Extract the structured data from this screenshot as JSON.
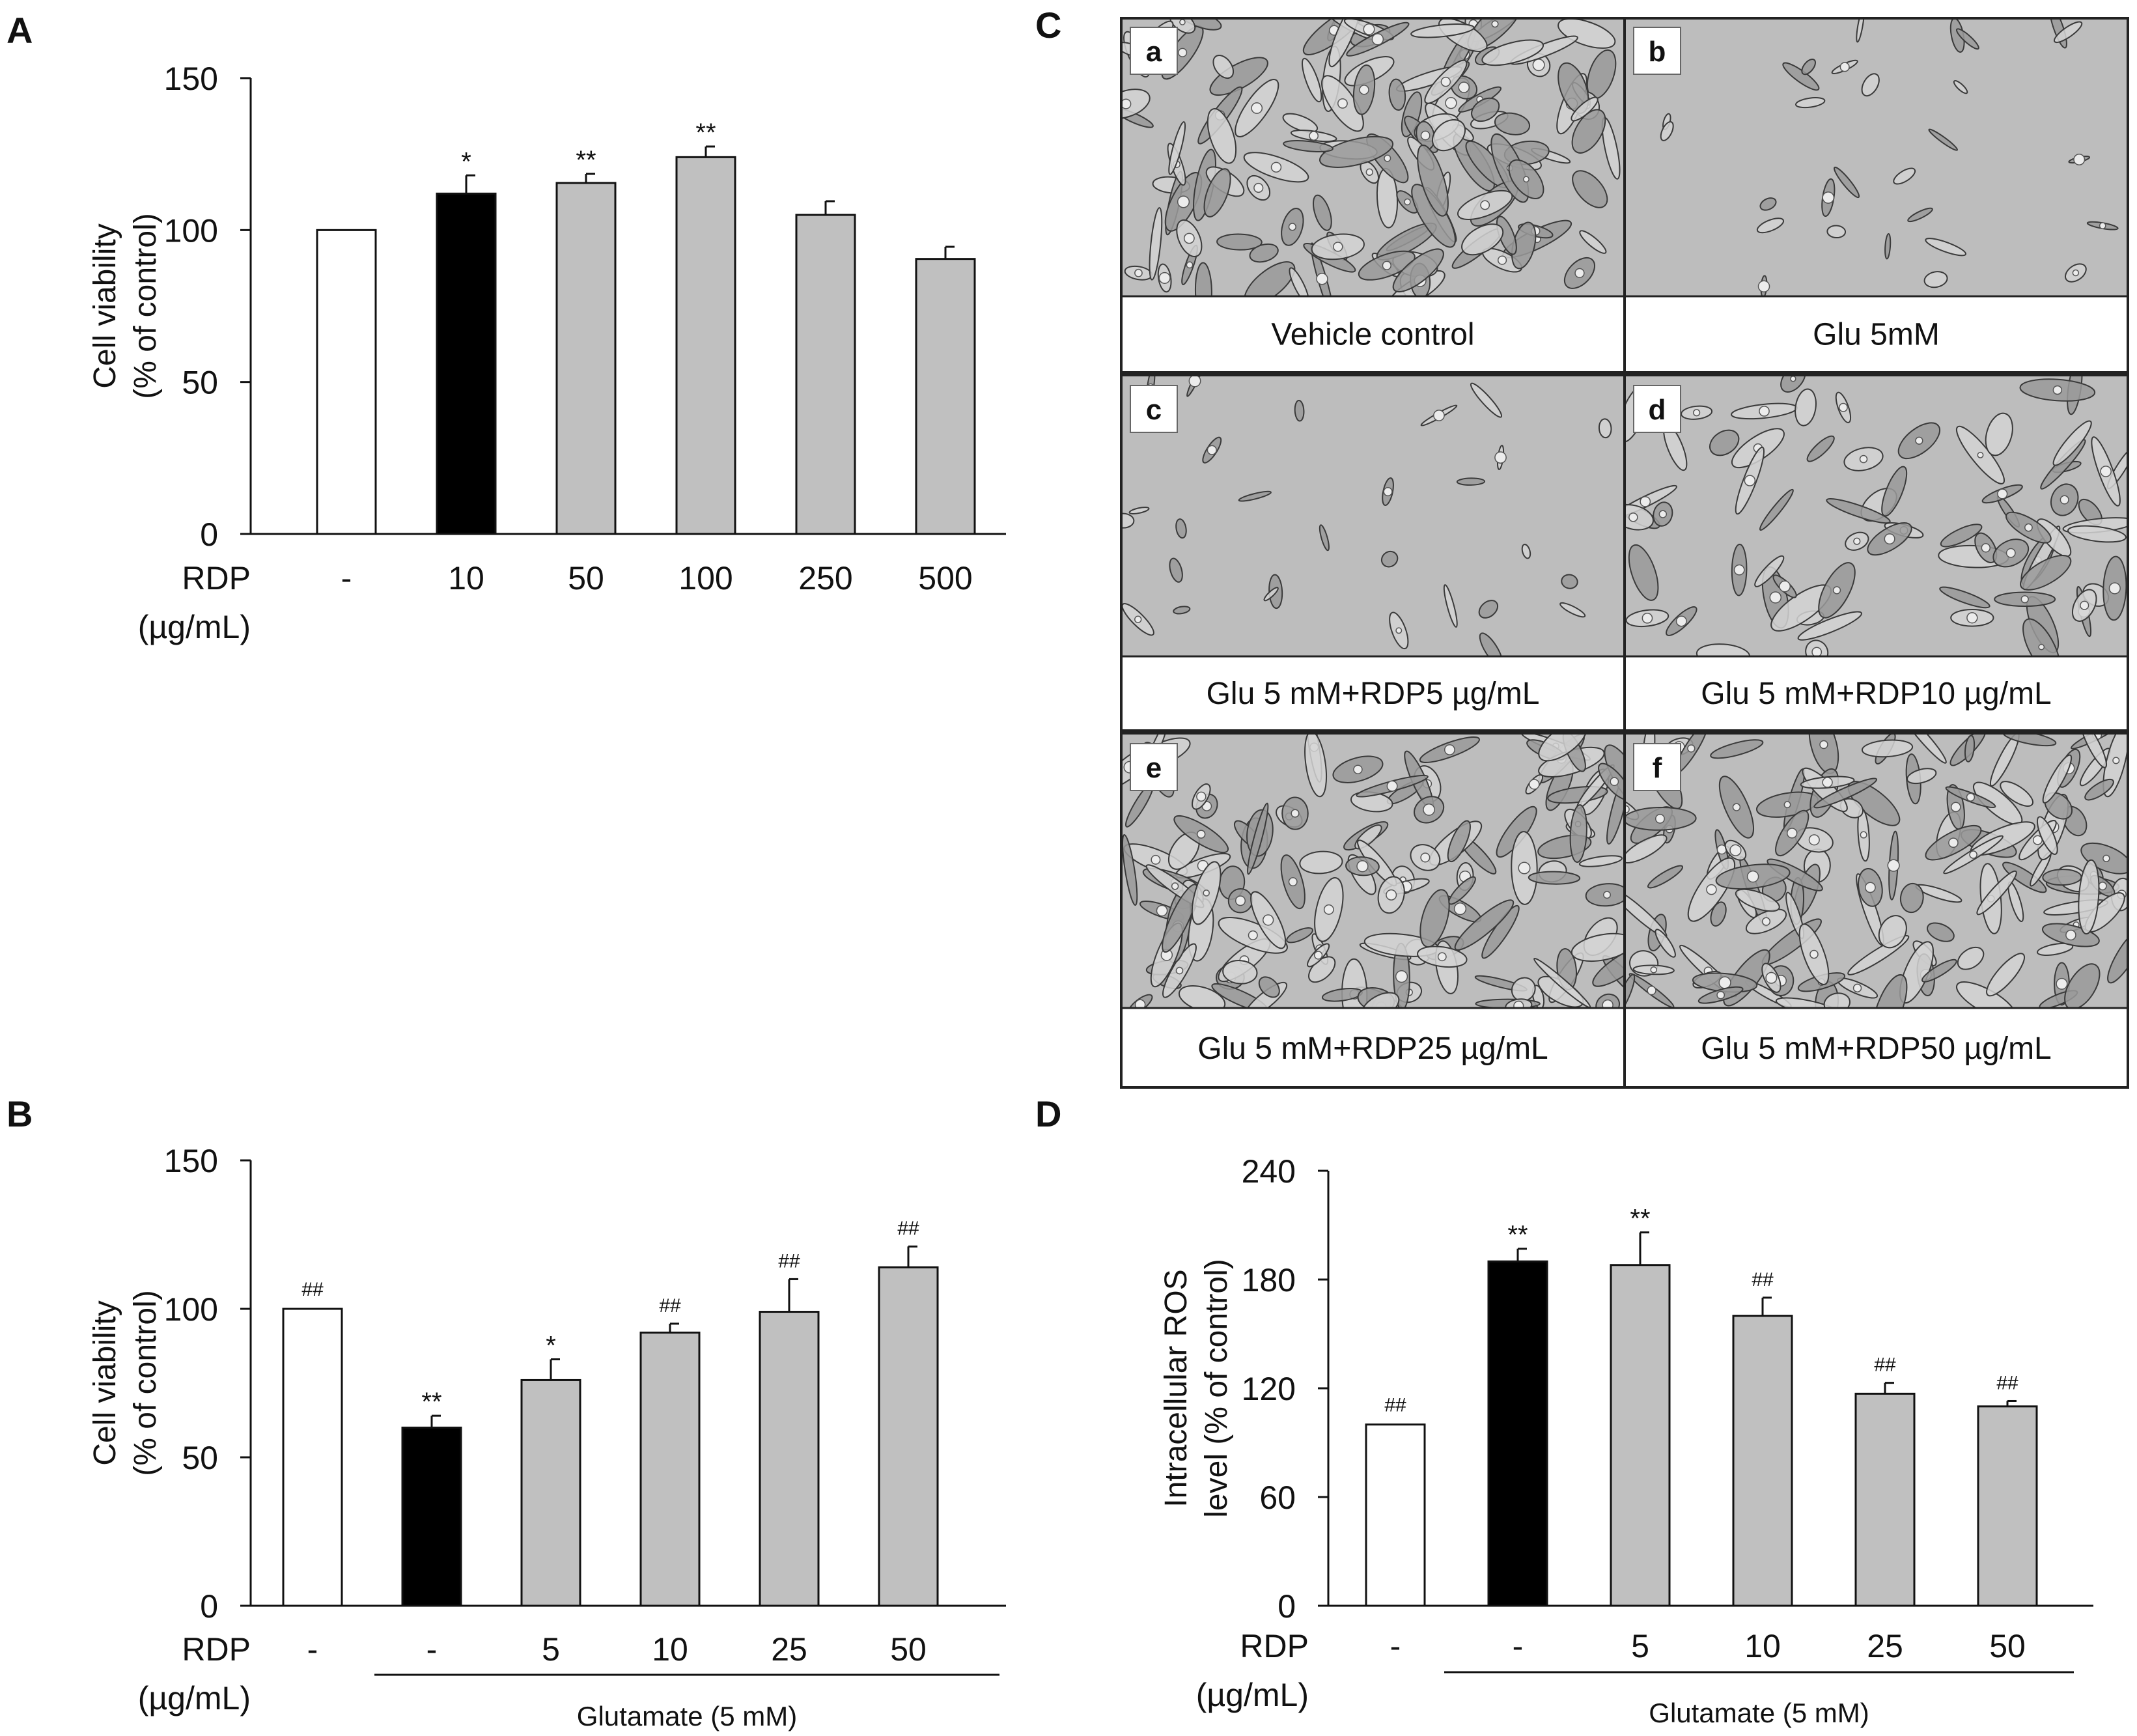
{
  "panel_letters": [
    "A",
    "B",
    "C",
    "D"
  ],
  "chart_data": [
    {
      "panel": "A",
      "type": "bar",
      "ylabel_line1": "Cell viability",
      "ylabel_line2": "(% of control)",
      "ylim": [
        0,
        150
      ],
      "yticks": [
        0,
        50,
        100,
        150
      ],
      "row_label_line1": "RDP",
      "row_label_line2": "(µg/mL)",
      "categories": [
        "-",
        "10",
        "50",
        "100",
        "250",
        "500"
      ],
      "values": [
        100,
        112,
        115.5,
        124,
        105,
        90.5
      ],
      "errors": [
        0,
        6,
        3,
        3.5,
        4.5,
        4
      ],
      "fills": [
        "white",
        "black",
        "gray",
        "gray",
        "gray",
        "gray"
      ],
      "annotations": [
        "",
        "*",
        "**",
        "**",
        "",
        ""
      ],
      "group_label": ""
    },
    {
      "panel": "B",
      "type": "bar",
      "ylabel_line1": "Cell viability",
      "ylabel_line2": "(% of control)",
      "ylim": [
        0,
        150
      ],
      "yticks": [
        0,
        50,
        100,
        150
      ],
      "row_label_line1": "RDP",
      "row_label_line2": "(µg/mL)",
      "categories": [
        "-",
        "-",
        "5",
        "10",
        "25",
        "50"
      ],
      "values": [
        100,
        60,
        76,
        92,
        99,
        114
      ],
      "errors": [
        0,
        4,
        7,
        3,
        11,
        7
      ],
      "fills": [
        "white",
        "black",
        "gray",
        "gray",
        "gray",
        "gray"
      ],
      "annotations": [
        "##",
        "**",
        "*",
        "##",
        "##",
        "##"
      ],
      "group_label": "Glutamate (5 mM)"
    },
    {
      "panel": "D",
      "type": "bar",
      "ylabel_line1": "Intracellular  ROS",
      "ylabel_line2": "level  (% of control)",
      "ylim": [
        0,
        240
      ],
      "yticks": [
        0,
        60,
        120,
        180,
        240
      ],
      "row_label_line1": "RDP",
      "row_label_line2": "(µg/mL)",
      "categories": [
        "-",
        "-",
        "5",
        "10",
        "25",
        "50"
      ],
      "values": [
        100,
        190,
        188,
        160,
        117,
        110
      ],
      "errors": [
        0,
        7,
        18,
        10,
        6,
        3
      ],
      "fills": [
        "white",
        "black",
        "gray",
        "gray",
        "gray",
        "gray"
      ],
      "annotations": [
        "##",
        "**",
        "**",
        "##",
        "##",
        "##"
      ],
      "group_label": "Glutamate (5 mM)"
    }
  ],
  "micrographs": {
    "panels": [
      {
        "letter": "a",
        "caption": "Vehicle control",
        "density": "dense"
      },
      {
        "letter": "b",
        "caption": "Glu 5mM",
        "density": "sparse"
      },
      {
        "letter": "c",
        "caption": "Glu 5 mM+RDP5  µg/mL",
        "density": "sparse"
      },
      {
        "letter": "d",
        "caption": "Glu 5 mM+RDP10  µg/mL",
        "density": "medium"
      },
      {
        "letter": "e",
        "caption": "Glu 5 mM+RDP25  µg/mL",
        "density": "dense"
      },
      {
        "letter": "f",
        "caption": "Glu 5 mM+RDP50  µg/mL",
        "density": "dense"
      }
    ]
  },
  "colors": {
    "bar_white": "#ffffff",
    "bar_black": "#000000",
    "bar_gray": "#c0c0c0",
    "axis": "#111111",
    "micro_bg": "#bdbdbd",
    "cell_dark": "#3a3a3a",
    "cell_light": "#ececec"
  }
}
